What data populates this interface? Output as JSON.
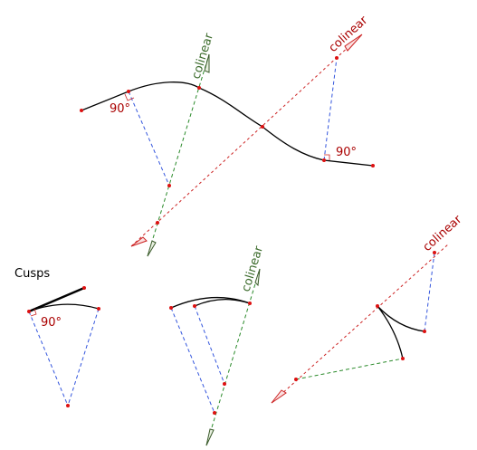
{
  "title": "Cusps",
  "top": {
    "colinear_green": "colinear",
    "colinear_red": "colinear",
    "angle_left": "90°",
    "angle_right": "90°"
  },
  "bottom": {
    "angle": "90°",
    "colinear_green": "colinear",
    "colinear_red": "colinear"
  }
}
